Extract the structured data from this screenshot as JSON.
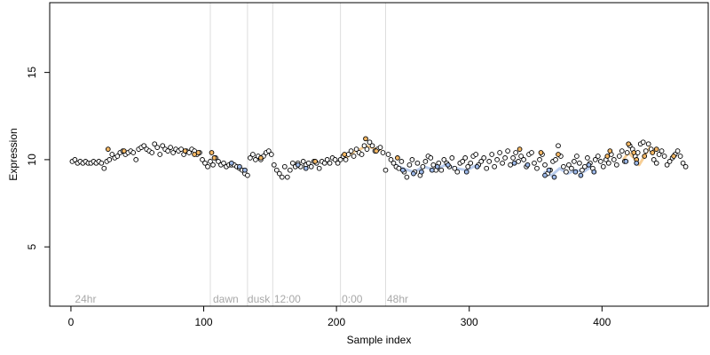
{
  "chart_data": {
    "type": "scatter",
    "xlabel": "Sample index",
    "ylabel": "Expression",
    "xlim": [
      -16,
      480
    ],
    "ylim": [
      1.6,
      19
    ],
    "xticks": [
      0,
      100,
      200,
      300,
      400
    ],
    "yticks": [
      5,
      10,
      15
    ],
    "vlines": [
      105,
      133,
      152,
      203,
      237
    ],
    "segment_labels": [
      {
        "x": 3,
        "text": "24hr"
      },
      {
        "x": 107,
        "text": "dawn"
      },
      {
        "x": 133,
        "text": "dusk"
      },
      {
        "x": 153,
        "text": "12:00"
      },
      {
        "x": 204,
        "text": "0:00"
      },
      {
        "x": 238,
        "text": "48hr"
      }
    ],
    "label_y": 2.0,
    "colors": {
      "default": "#ffffff",
      "highlight_orange": "#f5b865",
      "highlight_blue": "#9cb8e8",
      "vline": "#dddddd",
      "line_orange": "#f5c27a",
      "line_blue": "#a9c0ea"
    },
    "series": [
      {
        "fill": "default",
        "points": [
          [
            1,
            9.9
          ],
          [
            3,
            10.0
          ],
          [
            5,
            9.8
          ],
          [
            7,
            9.9
          ],
          [
            9,
            9.8
          ],
          [
            11,
            9.9
          ],
          [
            13,
            9.8
          ],
          [
            15,
            9.8
          ],
          [
            17,
            9.9
          ],
          [
            19,
            9.8
          ],
          [
            21,
            9.9
          ],
          [
            23,
            9.8
          ],
          [
            25,
            9.5
          ],
          [
            27,
            9.9
          ],
          [
            29,
            10.0
          ],
          [
            31,
            10.3
          ],
          [
            33,
            10.1
          ],
          [
            35,
            10.2
          ],
          [
            37,
            10.4
          ],
          [
            39,
            10.5
          ],
          [
            41,
            10.3
          ],
          [
            43,
            10.4
          ],
          [
            45,
            10.5
          ],
          [
            47,
            10.4
          ],
          [
            49,
            10.0
          ],
          [
            51,
            10.6
          ],
          [
            53,
            10.7
          ],
          [
            55,
            10.8
          ],
          [
            57,
            10.6
          ],
          [
            59,
            10.5
          ],
          [
            61,
            10.4
          ],
          [
            63,
            10.9
          ],
          [
            65,
            10.7
          ],
          [
            67,
            10.3
          ],
          [
            69,
            10.8
          ],
          [
            71,
            10.6
          ],
          [
            73,
            10.5
          ],
          [
            75,
            10.7
          ],
          [
            77,
            10.4
          ],
          [
            79,
            10.6
          ],
          [
            81,
            10.5
          ],
          [
            83,
            10.6
          ],
          [
            85,
            10.3
          ],
          [
            87,
            10.5
          ],
          [
            89,
            10.4
          ],
          [
            91,
            10.6
          ],
          [
            93,
            10.5
          ],
          [
            95,
            10.3
          ],
          [
            97,
            10.4
          ],
          [
            99,
            10.0
          ],
          [
            101,
            9.8
          ],
          [
            103,
            9.6
          ],
          [
            105,
            9.9
          ],
          [
            107,
            9.7
          ],
          [
            109,
            10.1
          ],
          [
            111,
            9.9
          ],
          [
            113,
            9.7
          ],
          [
            115,
            9.8
          ],
          [
            117,
            9.6
          ],
          [
            119,
            9.7
          ],
          [
            121,
            9.7
          ],
          [
            123,
            9.7
          ],
          [
            125,
            9.6
          ],
          [
            127,
            9.5
          ],
          [
            129,
            9.4
          ],
          [
            131,
            9.2
          ],
          [
            133,
            9.1
          ],
          [
            135,
            10.1
          ],
          [
            137,
            10.3
          ],
          [
            139,
            10.0
          ],
          [
            141,
            10.2
          ],
          [
            143,
            10.0
          ],
          [
            145,
            10.2
          ],
          [
            147,
            10.4
          ],
          [
            149,
            10.5
          ],
          [
            151,
            10.3
          ],
          [
            153,
            9.7
          ],
          [
            155,
            9.4
          ],
          [
            157,
            9.2
          ],
          [
            159,
            9.0
          ],
          [
            161,
            9.6
          ],
          [
            163,
            9.0
          ],
          [
            165,
            9.4
          ],
          [
            167,
            9.8
          ],
          [
            169,
            9.6
          ],
          [
            171,
            9.8
          ],
          [
            173,
            9.6
          ],
          [
            175,
            9.9
          ],
          [
            177,
            9.7
          ],
          [
            179,
            9.8
          ],
          [
            181,
            9.6
          ],
          [
            183,
            9.9
          ],
          [
            185,
            9.8
          ],
          [
            187,
            9.5
          ],
          [
            189,
            9.9
          ],
          [
            191,
            9.8
          ],
          [
            193,
            10.0
          ],
          [
            195,
            9.8
          ],
          [
            197,
            10.1
          ],
          [
            199,
            10.0
          ],
          [
            201,
            9.8
          ],
          [
            203,
            10.0
          ],
          [
            205,
            10.2
          ],
          [
            207,
            10.0
          ],
          [
            209,
            10.3
          ],
          [
            211,
            10.5
          ],
          [
            213,
            10.2
          ],
          [
            215,
            10.6
          ],
          [
            217,
            10.4
          ],
          [
            219,
            10.3
          ],
          [
            221,
            10.8
          ],
          [
            223,
            10.6
          ],
          [
            225,
            11.0
          ],
          [
            227,
            10.8
          ],
          [
            229,
            10.5
          ],
          [
            231,
            10.6
          ],
          [
            233,
            10.7
          ],
          [
            235,
            10.4
          ],
          [
            237,
            9.4
          ],
          [
            239,
            10.3
          ],
          [
            241,
            10.0
          ],
          [
            243,
            9.8
          ],
          [
            245,
            9.6
          ],
          [
            247,
            9.5
          ],
          [
            249,
            9.9
          ],
          [
            251,
            9.3
          ],
          [
            253,
            9.0
          ],
          [
            255,
            9.7
          ],
          [
            257,
            10.0
          ],
          [
            259,
            9.3
          ],
          [
            261,
            9.8
          ],
          [
            263,
            9.1
          ],
          [
            265,
            9.6
          ],
          [
            267,
            9.9
          ],
          [
            269,
            10.2
          ],
          [
            271,
            10.1
          ],
          [
            273,
            9.7
          ],
          [
            275,
            9.4
          ],
          [
            277,
            9.8
          ],
          [
            279,
            9.4
          ],
          [
            281,
            10.0
          ],
          [
            283,
            9.8
          ],
          [
            285,
            9.6
          ],
          [
            287,
            10.1
          ],
          [
            289,
            9.5
          ],
          [
            291,
            9.3
          ],
          [
            293,
            9.8
          ],
          [
            295,
            9.9
          ],
          [
            297,
            10.1
          ],
          [
            299,
            9.6
          ],
          [
            301,
            9.8
          ],
          [
            303,
            10.2
          ],
          [
            305,
            10.3
          ],
          [
            307,
            9.7
          ],
          [
            309,
            9.9
          ],
          [
            311,
            10.1
          ],
          [
            313,
            9.5
          ],
          [
            315,
            9.9
          ],
          [
            317,
            10.3
          ],
          [
            319,
            9.6
          ],
          [
            321,
            10.0
          ],
          [
            323,
            10.4
          ],
          [
            325,
            9.8
          ],
          [
            327,
            10.1
          ],
          [
            329,
            10.5
          ],
          [
            331,
            9.7
          ],
          [
            333,
            10.1
          ],
          [
            335,
            10.4
          ],
          [
            337,
            9.9
          ],
          [
            339,
            10.2
          ],
          [
            341,
            10.0
          ],
          [
            343,
            9.6
          ],
          [
            345,
            10.3
          ],
          [
            347,
            10.4
          ],
          [
            349,
            9.8
          ],
          [
            351,
            9.5
          ],
          [
            353,
            10.0
          ],
          [
            355,
            10.3
          ],
          [
            357,
            9.7
          ],
          [
            359,
            9.2
          ],
          [
            361,
            9.4
          ],
          [
            363,
            9.9
          ],
          [
            365,
            10.0
          ],
          [
            367,
            10.8
          ],
          [
            369,
            10.2
          ],
          [
            371,
            9.6
          ],
          [
            373,
            9.3
          ],
          [
            375,
            9.7
          ],
          [
            377,
            9.5
          ],
          [
            379,
            9.9
          ],
          [
            381,
            10.2
          ],
          [
            383,
            9.8
          ],
          [
            385,
            9.4
          ],
          [
            387,
            9.6
          ],
          [
            389,
            10.1
          ],
          [
            391,
            9.8
          ],
          [
            393,
            9.5
          ],
          [
            395,
            10.0
          ],
          [
            397,
            10.2
          ],
          [
            399,
            9.9
          ],
          [
            401,
            9.6
          ],
          [
            403,
            10.0
          ],
          [
            405,
            9.8
          ],
          [
            407,
            10.3
          ],
          [
            409,
            10.0
          ],
          [
            411,
            9.7
          ],
          [
            413,
            10.2
          ],
          [
            415,
            10.5
          ],
          [
            417,
            9.9
          ],
          [
            419,
            10.4
          ],
          [
            421,
            10.8
          ],
          [
            423,
            10.6
          ],
          [
            425,
            10.2
          ],
          [
            427,
            10.4
          ],
          [
            429,
            10.9
          ],
          [
            431,
            11.0
          ],
          [
            433,
            10.5
          ],
          [
            435,
            10.9
          ],
          [
            437,
            10.6
          ],
          [
            439,
            10.0
          ],
          [
            441,
            9.8
          ],
          [
            443,
            10.3
          ],
          [
            445,
            10.5
          ],
          [
            447,
            10.2
          ],
          [
            449,
            9.7
          ],
          [
            451,
            9.9
          ],
          [
            453,
            10.1
          ],
          [
            455,
            10.3
          ],
          [
            457,
            10.5
          ],
          [
            459,
            10.2
          ],
          [
            461,
            9.8
          ],
          [
            463,
            9.6
          ]
        ]
      },
      {
        "fill": "highlight_orange",
        "points": [
          [
            28,
            10.6
          ],
          [
            40,
            10.5
          ],
          [
            86,
            10.5
          ],
          [
            93,
            10.3
          ],
          [
            96,
            10.4
          ],
          [
            106,
            10.4
          ],
          [
            108,
            10.1
          ],
          [
            143,
            10.1
          ],
          [
            184,
            9.9
          ],
          [
            206,
            10.3
          ],
          [
            222,
            11.2
          ],
          [
            230,
            10.5
          ],
          [
            246,
            10.1
          ],
          [
            338,
            10.6
          ],
          [
            354,
            10.4
          ],
          [
            367,
            10.3
          ],
          [
            404,
            10.2
          ],
          [
            406,
            10.5
          ],
          [
            420,
            10.9
          ],
          [
            424,
            10.4
          ],
          [
            426,
            10.0
          ],
          [
            432,
            10.2
          ],
          [
            438,
            10.4
          ],
          [
            441,
            10.6
          ],
          [
            454,
            10.2
          ]
        ]
      },
      {
        "fill": "highlight_blue",
        "points": [
          [
            121,
            9.8
          ],
          [
            127,
            9.6
          ],
          [
            131,
            9.4
          ],
          [
            171,
            9.7
          ],
          [
            177,
            9.5
          ],
          [
            250,
            9.4
          ],
          [
            258,
            9.2
          ],
          [
            264,
            9.3
          ],
          [
            272,
            9.4
          ],
          [
            276,
            9.6
          ],
          [
            284,
            9.7
          ],
          [
            298,
            9.3
          ],
          [
            306,
            9.6
          ],
          [
            334,
            9.8
          ],
          [
            344,
            9.7
          ],
          [
            357,
            9.1
          ],
          [
            360,
            9.4
          ],
          [
            364,
            9.0
          ],
          [
            380,
            9.3
          ],
          [
            384,
            9.1
          ],
          [
            390,
            9.7
          ],
          [
            394,
            9.3
          ],
          [
            418,
            9.9
          ],
          [
            426,
            9.8
          ]
        ]
      }
    ],
    "lines": [
      {
        "color": "line_orange",
        "points": [
          [
            206,
            10.0
          ],
          [
            210,
            10.3
          ],
          [
            214,
            10.5
          ],
          [
            218,
            10.6
          ],
          [
            222,
            10.8
          ],
          [
            226,
            10.7
          ],
          [
            230,
            10.6
          ],
          [
            234,
            10.6
          ]
        ]
      },
      {
        "color": "line_orange",
        "points": [
          [
            416,
            10.0
          ],
          [
            420,
            10.4
          ],
          [
            424,
            10.1
          ],
          [
            428,
            9.7
          ],
          [
            432,
            10.2
          ],
          [
            436,
            10.7
          ],
          [
            440,
            10.4
          ]
        ]
      },
      {
        "color": "line_blue",
        "points": [
          [
            242,
            9.8
          ],
          [
            250,
            9.5
          ],
          [
            258,
            9.3
          ],
          [
            266,
            9.6
          ],
          [
            274,
            9.4
          ],
          [
            282,
            9.7
          ],
          [
            290,
            9.5
          ],
          [
            298,
            9.4
          ],
          [
            306,
            9.7
          ]
        ]
      },
      {
        "color": "line_blue",
        "points": [
          [
            356,
            9.3
          ],
          [
            362,
            9.1
          ],
          [
            368,
            9.5
          ],
          [
            374,
            9.2
          ],
          [
            380,
            9.4
          ],
          [
            386,
            9.3
          ],
          [
            392,
            9.6
          ]
        ]
      }
    ]
  }
}
